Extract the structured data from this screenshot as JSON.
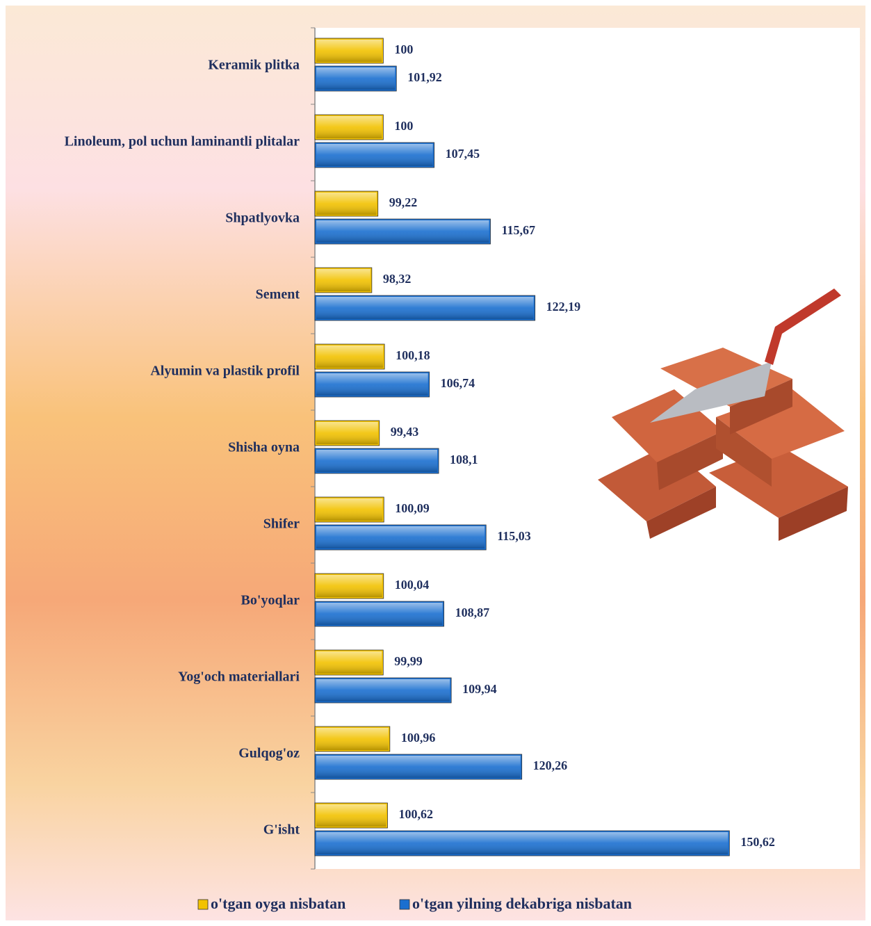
{
  "chart_data": {
    "type": "hbar",
    "categories": [
      "Keramik plitka",
      "Linoleum, pol uchun laminantli plitalar",
      "Shpatlyovka",
      "Sement",
      "Alyumin va plastik profil",
      "Shisha oyna",
      "Shifer",
      "Bo'yoqlar",
      "Yog'och materiallari",
      "Gulqog'oz",
      "G'isht"
    ],
    "series": [
      {
        "name": "o'tgan oyga nisbatan",
        "color": "#f2c200",
        "values": [
          100,
          100,
          99.22,
          98.32,
          100.18,
          99.43,
          100.09,
          100.04,
          99.99,
          100.96,
          100.62
        ],
        "value_labels": [
          "100",
          "100",
          "99,22",
          "98,32",
          "100,18",
          "99,43",
          "100,09",
          "100,04",
          "99,99",
          "100,96",
          "100,62"
        ]
      },
      {
        "name": "o'tgan yilning dekabriga nisbatan",
        "color": "#1a6fd0",
        "values": [
          101.92,
          107.45,
          115.67,
          122.19,
          106.74,
          108.1,
          115.03,
          108.87,
          109.94,
          120.26,
          150.62
        ],
        "value_labels": [
          "101,92",
          "107,45",
          "115,67",
          "122,19",
          "106,74",
          "108,1",
          "115,03",
          "108,87",
          "109,94",
          "120,26",
          "150,62"
        ]
      }
    ],
    "xlim": [
      90,
      170
    ],
    "legend": "bottom"
  }
}
